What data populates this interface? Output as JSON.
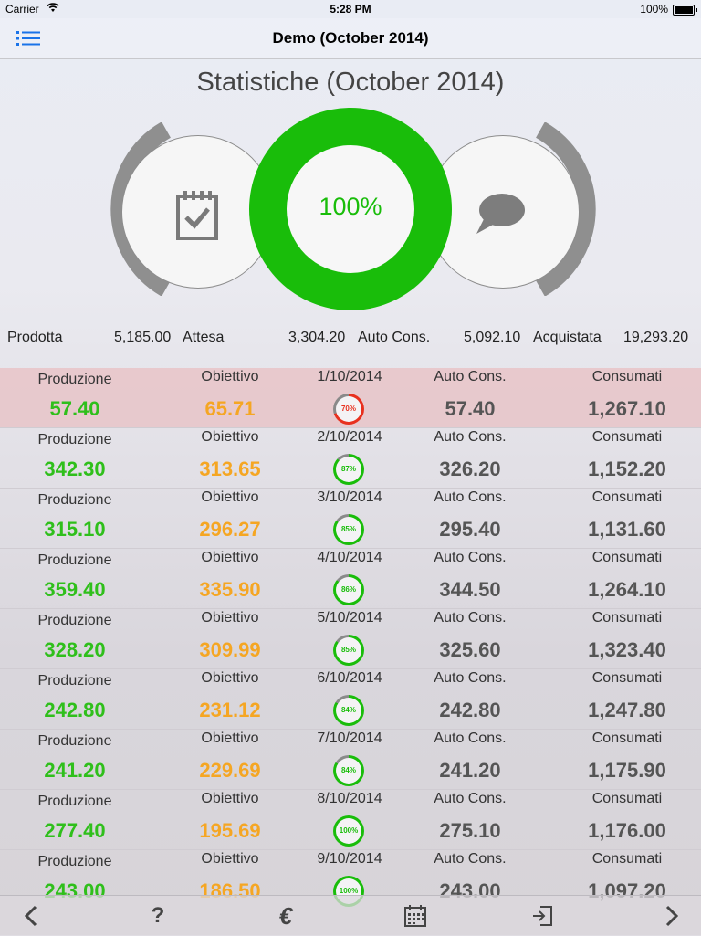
{
  "status_bar": {
    "carrier": "Carrier",
    "time": "5:28 PM",
    "battery": "100%"
  },
  "nav": {
    "title": "Demo (October 2014)",
    "menu_icon": "list-icon"
  },
  "stats": {
    "title": "Statistiche (October 2014)",
    "percent": "100%",
    "left_icon": "calendar-check-icon",
    "right_icon": "chat-bubble-icon"
  },
  "summary": {
    "prodotta_label": "Prodotta",
    "prodotta_value": "5,185.00",
    "attesa_label": "Attesa",
    "attesa_value": "3,304.20",
    "autocons_label": "Auto Cons.",
    "autocons_value": "5,092.10",
    "acquistata_label": "Acquistata",
    "acquistata_value": "19,293.20"
  },
  "columns": {
    "produzione": "Produzione",
    "obiettivo": "Obiettivo",
    "autocons": "Auto Cons.",
    "consumati": "Consumati"
  },
  "rows": [
    {
      "date": "1/10/2014",
      "produzione": "57.40",
      "obiettivo": "65.71",
      "percent": "70%",
      "pct": 70,
      "autocons": "57.40",
      "consumati": "1,267.10"
    },
    {
      "date": "2/10/2014",
      "produzione": "342.30",
      "obiettivo": "313.65",
      "percent": "87%",
      "pct": 87,
      "autocons": "326.20",
      "consumati": "1,152.20"
    },
    {
      "date": "3/10/2014",
      "produzione": "315.10",
      "obiettivo": "296.27",
      "percent": "85%",
      "pct": 85,
      "autocons": "295.40",
      "consumati": "1,131.60"
    },
    {
      "date": "4/10/2014",
      "produzione": "359.40",
      "obiettivo": "335.90",
      "percent": "86%",
      "pct": 86,
      "autocons": "344.50",
      "consumati": "1,264.10"
    },
    {
      "date": "5/10/2014",
      "produzione": "328.20",
      "obiettivo": "309.99",
      "percent": "85%",
      "pct": 85,
      "autocons": "325.60",
      "consumati": "1,323.40"
    },
    {
      "date": "6/10/2014",
      "produzione": "242.80",
      "obiettivo": "231.12",
      "percent": "84%",
      "pct": 84,
      "autocons": "242.80",
      "consumati": "1,247.80"
    },
    {
      "date": "7/10/2014",
      "produzione": "241.20",
      "obiettivo": "229.69",
      "percent": "84%",
      "pct": 84,
      "autocons": "241.20",
      "consumati": "1,175.90"
    },
    {
      "date": "8/10/2014",
      "produzione": "277.40",
      "obiettivo": "195.69",
      "percent": "100%",
      "pct": 100,
      "autocons": "275.10",
      "consumati": "1,176.00"
    },
    {
      "date": "9/10/2014",
      "produzione": "243.00",
      "obiettivo": "186.50",
      "percent": "100%",
      "pct": 100,
      "autocons": "243.00",
      "consumati": "1,097.20"
    }
  ],
  "toolbar": {
    "back_icon": "chevron-left-icon",
    "help_icon": "question-icon",
    "currency_icon": "euro-icon",
    "calendar_icon": "calendar-icon",
    "logout_icon": "logout-icon",
    "forward_icon": "chevron-right-icon",
    "help_glyph": "?",
    "currency_glyph": "€"
  },
  "colors": {
    "green": "#19bd0a",
    "orange": "#f5a623",
    "red": "#e8301e",
    "highlight": "#e8c4c8"
  }
}
